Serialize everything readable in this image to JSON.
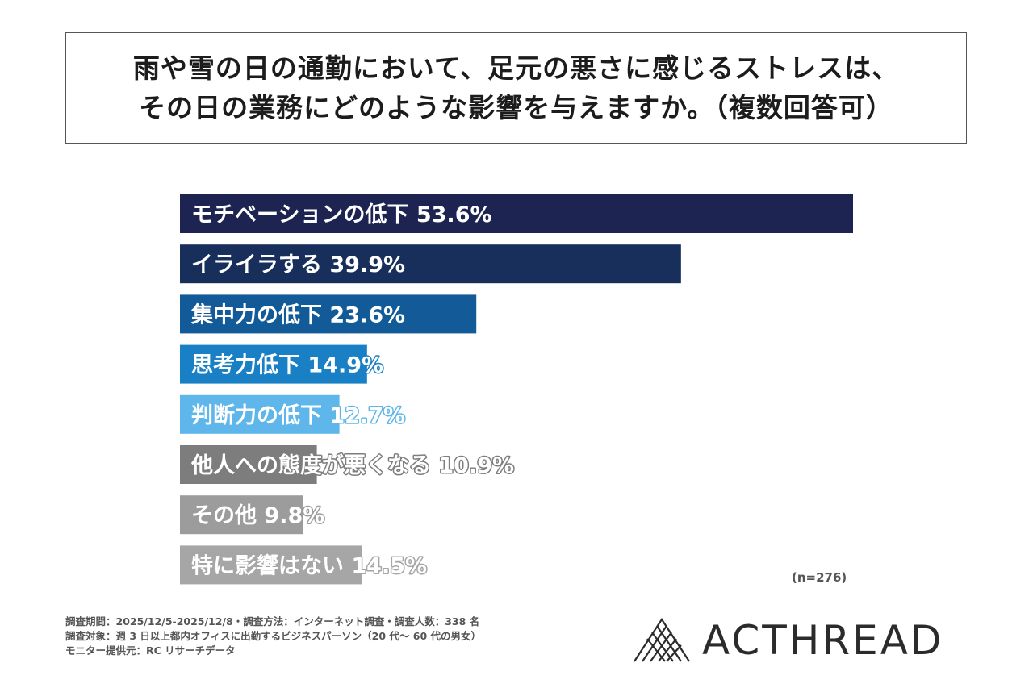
{
  "title": {
    "line1": "雨や雪の日の通勤において、足元の悪さに感じるストレスは、",
    "line2": "その日の業務にどのような影響を与えますか。（複数回答可）"
  },
  "chart_data": {
    "type": "bar",
    "orientation": "horizontal",
    "categories": [
      "モチベーションの低下",
      "イライラする",
      "集中力の低下",
      "思考力低下",
      "判断力の低下",
      "他人への態度が悪くなる",
      "その他",
      "特に影響はない"
    ],
    "values": [
      53.6,
      39.9,
      23.6,
      14.9,
      12.7,
      10.9,
      9.8,
      14.5
    ],
    "value_labels": [
      "53.6%",
      "39.9%",
      "23.6%",
      "14.9%",
      "12.7%",
      "10.9%",
      "9.8%",
      "14.5%"
    ],
    "colors": [
      "#1e2451",
      "#182f5c",
      "#135a98",
      "#1a80c5",
      "#5fb6ea",
      "#7d7d7d",
      "#9c9c9c",
      "#a6a6a6"
    ],
    "xlim": [
      0,
      100
    ],
    "n_label": "(n=276)"
  },
  "footnotes": [
    "調査期間：2025/12/5-2025/12/8・調査方法：インターネット調査・調査人数：338 名",
    "調査対象：週 3 日以上都内オフィスに出勤するビジネスパーソン（20 代～ 60 代の男女）",
    "モニター提供元：RC リサーチデータ"
  ],
  "logo": {
    "text": "ACTHREAD",
    "icon": "woven-triangle-logo-icon"
  }
}
